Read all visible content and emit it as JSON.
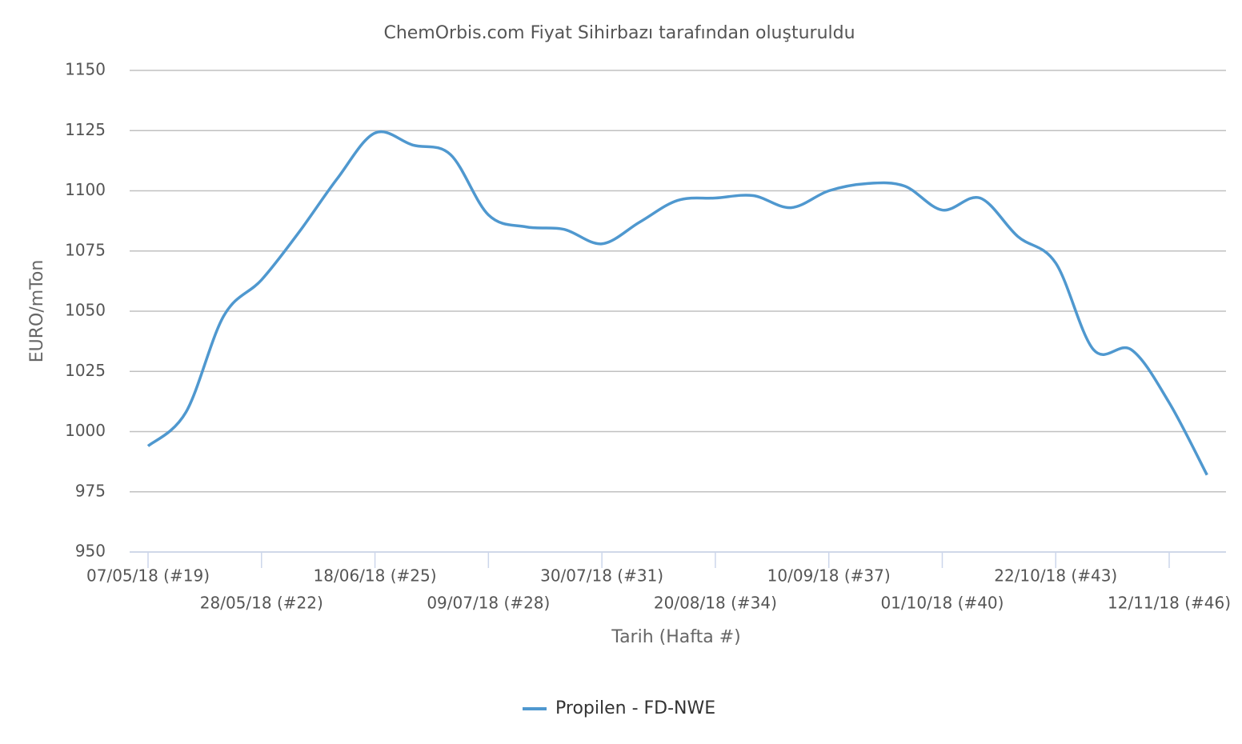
{
  "chart_data": {
    "type": "line",
    "title": "ChemOrbis.com Fiyat Sihirbazı tarafından oluşturuldu",
    "x_label": "Tarih (Hafta #)",
    "y_label": "EURO/mTon",
    "categories": [
      "07/05/18 (#19)",
      null,
      null,
      "28/05/18 (#22)",
      null,
      null,
      "18/06/18 (#25)",
      null,
      null,
      "09/07/18 (#28)",
      null,
      null,
      "30/07/18 (#31)",
      null,
      null,
      "20/08/18 (#34)",
      null,
      null,
      "10/09/18 (#37)",
      null,
      null,
      "01/10/18 (#40)",
      null,
      null,
      "22/10/18 (#43)",
      null,
      null,
      "12/11/18 (#46)",
      null
    ],
    "series": [
      {
        "name": "Propilen - FD-NWE",
        "color": "#4f98cf",
        "values": [
          994,
          1008,
          1048,
          1063,
          1083,
          1105,
          1124,
          1119,
          1115,
          1090,
          1085,
          1084,
          1078,
          1087,
          1096,
          1097,
          1098,
          1093,
          1100,
          1103,
          1102,
          1092,
          1097,
          1081,
          1070,
          1034,
          1034,
          1012,
          982
        ]
      }
    ],
    "ylim": [
      950,
      1150
    ],
    "yticks": [
      950,
      975,
      1000,
      1025,
      1050,
      1075,
      1100,
      1125,
      1150
    ],
    "grid": true,
    "legend": "bottom"
  }
}
